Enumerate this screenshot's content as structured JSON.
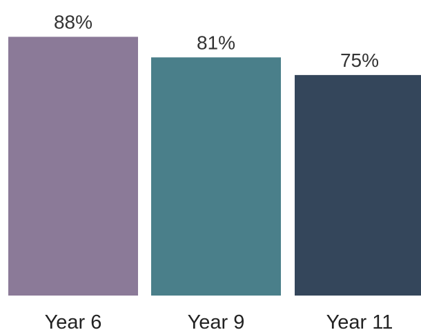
{
  "chart_data": {
    "type": "bar",
    "categories": [
      "Year 6",
      "Year 9",
      "Year 11"
    ],
    "values": [
      88,
      81,
      75
    ],
    "value_labels": [
      "88%",
      "81%",
      "75%"
    ],
    "colors": [
      "#8b7a98",
      "#4a7f8a",
      "#34465b"
    ],
    "title": "",
    "xlabel": "",
    "ylabel": "",
    "ylim": [
      0,
      100
    ],
    "grid": false,
    "legend": "none"
  }
}
